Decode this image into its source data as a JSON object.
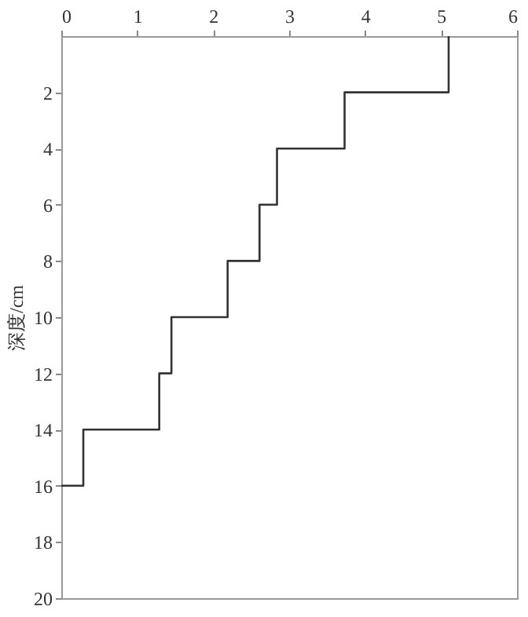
{
  "chart_data": {
    "type": "step",
    "orientation": "horizontal",
    "ylabel": "深度/cm",
    "x": [
      0,
      2,
      4,
      6,
      8,
      10,
      12,
      14,
      16
    ],
    "values": [
      5.1,
      3.73,
      2.84,
      2.61,
      2.19,
      1.45,
      1.29,
      0.29,
      0
    ],
    "color": "#333333",
    "xlim": [
      0,
      6
    ],
    "xticks": [
      0,
      1,
      2,
      3,
      4,
      5,
      6
    ],
    "ylim": [
      20,
      0
    ],
    "yticks": [
      2,
      4,
      6,
      8,
      10,
      12,
      14,
      16,
      18,
      20
    ],
    "grid": false,
    "line_style": "solid"
  }
}
